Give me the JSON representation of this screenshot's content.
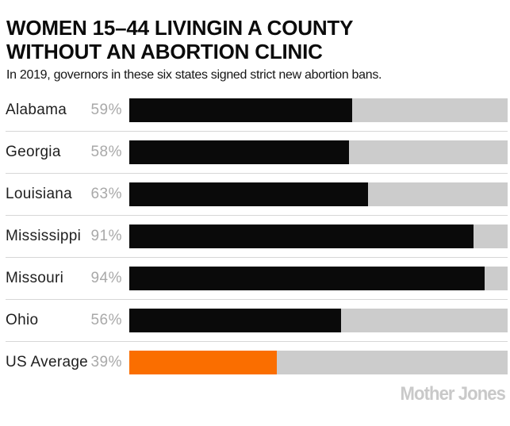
{
  "header": {
    "title_line1": "WOMEN 15–44 LIVINGIN A COUNTY",
    "title_line2": "WITHOUT AN ABORTION CLINIC",
    "subtitle": "In 2019, governors in these six states signed strict new abortion bans."
  },
  "chart_data": {
    "type": "bar",
    "orientation": "horizontal",
    "title": "WOMEN 15–44 LIVINGIN A COUNTY WITHOUT AN ABORTION CLINIC",
    "subtitle": "In 2019, governors in these six states signed strict new abortion bans.",
    "categories": [
      "Alabama",
      "Georgia",
      "Louisiana",
      "Mississippi",
      "Missouri",
      "Ohio",
      "US Average"
    ],
    "values": [
      59,
      58,
      63,
      91,
      94,
      56,
      39
    ],
    "value_labels": [
      "59%",
      "58%",
      "63%",
      "91%",
      "94%",
      "56%",
      "39%"
    ],
    "xlim": [
      0,
      100
    ],
    "grid": false,
    "legend": false,
    "highlight_category": "US Average",
    "colors": {
      "bar_default": "#0a0a0a",
      "bar_highlight": "#fa6e00",
      "track": "#cccccc",
      "value_label": "#a9a9a9",
      "category_label": "#1f1f1f",
      "separator": "#d7d7d7"
    }
  },
  "footer": {
    "logo_text": "Mother Jones",
    "logo_color": "#c9c9c9"
  }
}
